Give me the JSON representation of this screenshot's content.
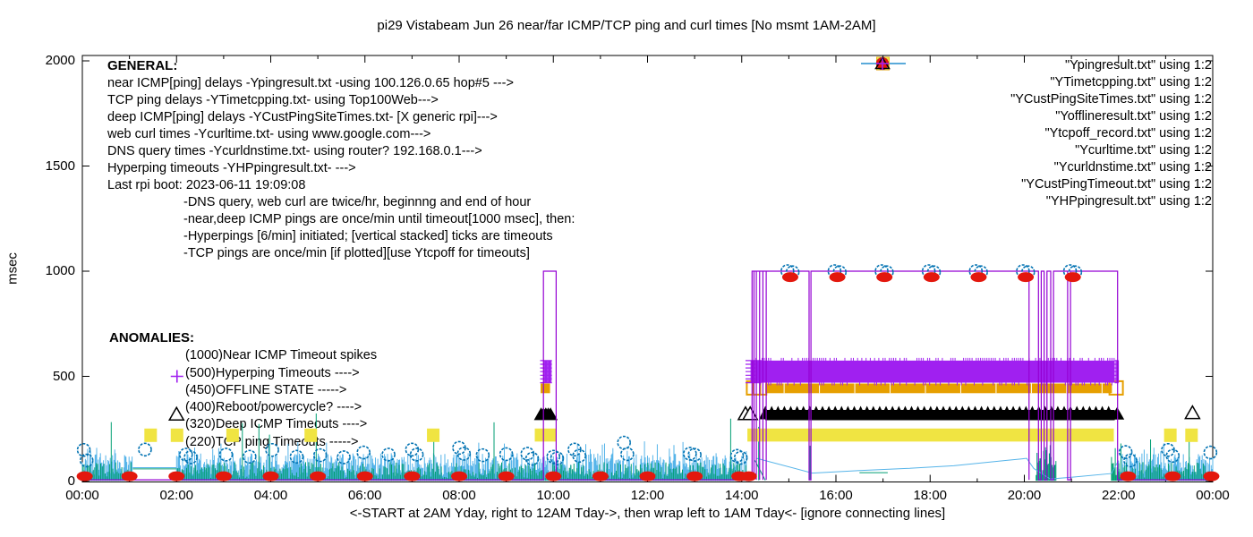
{
  "title": "pi29 Vistabeam Jun 26  near/far ICMP/TCP ping and curl times [No msmt 1AM-2AM]",
  "y_axis": {
    "label": "msec",
    "ticks": [
      0,
      500,
      1000,
      1500,
      2000
    ],
    "max": 2000
  },
  "x_axis": {
    "label": "<-START at 2AM Yday, right to 12AM Tday->, then wrap left to 1AM Tday<- [ignore connecting lines]",
    "ticks": [
      "00:00",
      "02:00",
      "04:00",
      "06:00",
      "08:00",
      "10:00",
      "12:00",
      "14:00",
      "16:00",
      "18:00",
      "20:00",
      "22:00",
      "00:00"
    ],
    "tick_hours": [
      0,
      2,
      4,
      6,
      8,
      10,
      12,
      14,
      16,
      18,
      20,
      22,
      24
    ]
  },
  "legend": [
    {
      "label": "\"Ypingresult.txt\" using 1:2",
      "marker": "line",
      "color": "#9400d3"
    },
    {
      "label": "\"YTimetcpping.txt\" using 1:2",
      "marker": "line",
      "color": "#009e73"
    },
    {
      "label": "\"YCustPingSiteTimes.txt\" using 1:2",
      "marker": "line",
      "color": "#56b4e9"
    },
    {
      "label": "\"Yofflineresult.txt\" using 1:2",
      "marker": "open-square",
      "color": "#e69f00"
    },
    {
      "label": "\"Ytcpoff_record.txt\" using 1:2",
      "marker": "filled-square",
      "color": "#f0e442"
    },
    {
      "label": "\"Ycurltime.txt\" using 1:2",
      "marker": "open-circle",
      "color": "#0072b2"
    },
    {
      "label": "\"Ycurldnstime.txt\" using 1:2",
      "marker": "filled-circle",
      "color": "#e3170d"
    },
    {
      "label": "\"YCustPingTimeout.txt\" using 1:2",
      "marker": "open-triangle",
      "color": "#000000"
    },
    {
      "label": "\"YHPpingresult.txt\" using 1:2",
      "marker": "plus",
      "color": "#a020f0"
    }
  ],
  "general": {
    "heading": "GENERAL:",
    "lines": [
      "near ICMP[ping] delays -Ypingresult.txt -using 100.126.0.65 hop#5 --->",
      "TCP ping delays -YTimetcpping.txt- using Top100Web--->",
      "deep ICMP[ping] delays -YCustPingSiteTimes.txt- [X generic rpi]--->",
      "web curl times -Ycurltime.txt- using www.google.com--->",
      "DNS query times -Ycurldnstime.txt- using router? 192.168.0.1--->",
      "Hyperping timeouts -YHPpingresult.txt- --->",
      "Last rpi boot: 2023-06-11 19:09:08"
    ],
    "notes": [
      "-DNS query, web curl are twice/hr, beginnng and end of hour",
      "-near,deep ICMP pings are once/min until timeout[1000 msec], then:",
      " -Hyperpings [6/min] initiated; [vertical stacked] ticks are timeouts",
      "-TCP pings are once/min [if plotted][use Ytcpoff for timeouts]"
    ]
  },
  "anomalies": {
    "heading": "ANOMALIES:",
    "lines": [
      "(1000)Near ICMP Timeout spikes",
      "(500)Hyperping Timeouts ---->",
      "(450)OFFLINE STATE ----->",
      "(400)Reboot/powercycle? ---->",
      "(320)Deep ICMP Timeouts ---->",
      "(220)TCP ping Timeouts ----->"
    ]
  },
  "colors": {
    "near_icmp": "#9400d3",
    "tcp_ping": "#009e73",
    "deep_icmp": "#56b4e9",
    "offline": "#e69f00",
    "tcpoff": "#f0e442",
    "curl": "#0072b2",
    "dns": "#e3170d",
    "cust_timeout": "#000000",
    "hyperping": "#a020f0"
  },
  "chart_data": {
    "type": "line",
    "title": "pi29 Vistabeam Jun 26  near/far ICMP/TCP ping and curl times [No msmt 1AM-2AM]",
    "xlabel": "<-START at 2AM Yday, right to 12AM Tday->, then wrap left to 1AM Tday<- [ignore connecting lines]",
    "ylabel": "msec",
    "xlim": [
      0,
      24
    ],
    "ylim": [
      0,
      2000
    ],
    "grid": false,
    "legend_position": "top-right",
    "no_msmt_gap": {
      "range": [
        1.07,
        2.0
      ],
      "flat_lines": [
        {
          "series": "tcp_ping",
          "msec": 60
        },
        {
          "series": "deep_icmp",
          "msec": 66
        }
      ]
    },
    "noise": {
      "segments": [
        [
          0.0,
          1.07
        ],
        [
          2.0,
          14.1
        ],
        [
          22.0,
          24.0
        ]
      ],
      "deep_icmp_band": {
        "min": 25,
        "max": 135,
        "spike_max": 195
      },
      "tcp_ping_band": {
        "min": 14,
        "max": 92,
        "spike_max": 330
      }
    },
    "teal_grass_patches": [
      [
        20.25,
        20.68,
        175
      ],
      [
        21.85,
        22.05,
        200
      ]
    ],
    "near_icmp_path": [
      [
        0,
        8
      ],
      [
        9.79,
        8
      ],
      [
        9.79,
        1000
      ],
      [
        10.06,
        1000
      ],
      [
        10.06,
        8
      ],
      [
        14.22,
        8
      ],
      [
        14.22,
        1000
      ],
      [
        15.43,
        1000
      ],
      [
        15.43,
        8
      ],
      [
        15.47,
        8
      ],
      [
        15.47,
        1000
      ],
      [
        20.3,
        1000
      ],
      [
        20.3,
        8
      ],
      [
        20.36,
        8
      ],
      [
        20.36,
        1000
      ],
      [
        20.42,
        1000
      ],
      [
        20.42,
        8
      ],
      [
        20.48,
        8
      ],
      [
        20.48,
        1000
      ],
      [
        20.56,
        1000
      ],
      [
        20.56,
        8
      ],
      [
        20.62,
        8
      ],
      [
        20.62,
        1000
      ],
      [
        20.92,
        1000
      ],
      [
        20.92,
        8
      ],
      [
        20.98,
        8
      ],
      [
        20.98,
        1000
      ],
      [
        21.98,
        1000
      ],
      [
        21.98,
        8
      ],
      [
        24,
        8
      ]
    ],
    "near_icmp_extra_verticals": [
      14.26,
      14.31,
      14.38,
      14.45,
      14.52,
      20.1
    ],
    "hyperping": {
      "band": {
        "x0": 14.3,
        "x1": 21.92,
        "msec_lo": 470,
        "msec_hi": 575
      },
      "clusters": [
        [
          9.72,
          9.97
        ],
        [
          14.08,
          14.42
        ],
        [
          21.92,
          22.0
        ]
      ],
      "points": [
        [
          2.01,
          500
        ]
      ]
    },
    "offline": {
      "band": {
        "x0": 14.5,
        "x1": 21.86,
        "msec_lo": 420,
        "msec_hi": 466
      },
      "cluster": [
        9.73,
        9.93
      ],
      "open_points": [
        [
          14.25,
          445
        ],
        [
          14.38,
          445
        ],
        [
          21.95,
          445
        ]
      ]
    },
    "tcpoff": {
      "band": {
        "x0": 14.12,
        "x1": 21.9,
        "msec_lo": 190,
        "msec_hi": 252
      },
      "cluster": [
        9.72,
        9.95
      ],
      "points": [
        [
          1.45,
          220
        ],
        [
          2.01,
          220
        ],
        [
          3.19,
          220
        ],
        [
          4.85,
          220
        ],
        [
          7.45,
          220
        ],
        [
          23.1,
          220
        ],
        [
          23.55,
          220
        ]
      ]
    },
    "cust_timeout": {
      "band": {
        "x0": 14.5,
        "x1": 21.92,
        "msec": 320
      },
      "filled_cluster": [
        9.74,
        9.98
      ],
      "filled_points": [
        [
          21.97,
          320
        ]
      ],
      "open_points": [
        [
          2.0,
          318
        ],
        [
          14.08,
          320
        ],
        [
          14.18,
          320
        ],
        [
          23.57,
          325
        ]
      ]
    },
    "curl_points": [
      [
        0.03,
        150
      ],
      [
        0.09,
        100
      ],
      [
        1.33,
        152
      ],
      [
        2.2,
        128
      ],
      [
        2.3,
        115
      ],
      [
        3.05,
        128
      ],
      [
        3.55,
        118
      ],
      [
        4.03,
        150
      ],
      [
        4.55,
        118
      ],
      [
        5.05,
        125
      ],
      [
        5.55,
        115
      ],
      [
        5.97,
        138
      ],
      [
        6.5,
        128
      ],
      [
        7.0,
        152
      ],
      [
        7.1,
        128
      ],
      [
        8.0,
        160
      ],
      [
        8.1,
        132
      ],
      [
        8.5,
        125
      ],
      [
        9.0,
        130
      ],
      [
        9.45,
        132
      ],
      [
        9.55,
        108
      ],
      [
        10.0,
        118
      ],
      [
        10.08,
        110
      ],
      [
        10.45,
        152
      ],
      [
        10.55,
        122
      ],
      [
        11.5,
        185
      ],
      [
        11.57,
        130
      ],
      [
        12.9,
        132
      ],
      [
        13.0,
        127
      ],
      [
        13.9,
        122
      ],
      [
        13.98,
        113
      ],
      [
        14.97,
        1000
      ],
      [
        15.08,
        995
      ],
      [
        15.97,
        1000
      ],
      [
        16.08,
        995
      ],
      [
        16.97,
        1000
      ],
      [
        17.08,
        995
      ],
      [
        17.97,
        1000
      ],
      [
        18.08,
        995
      ],
      [
        18.97,
        1000
      ],
      [
        19.08,
        995
      ],
      [
        19.97,
        1000
      ],
      [
        20.08,
        995
      ],
      [
        20.97,
        1000
      ],
      [
        21.08,
        995
      ],
      [
        22.15,
        140
      ],
      [
        22.25,
        100
      ],
      [
        23.05,
        150
      ],
      [
        23.15,
        122
      ],
      [
        23.95,
        138
      ]
    ],
    "dns_points_low": {
      "hours": [
        0.05,
        1,
        2,
        3,
        4,
        5,
        6,
        7,
        8,
        9,
        10,
        11,
        12,
        13,
        13.95,
        14.15,
        22.2,
        23.15,
        23.97
      ],
      "msec": 25
    },
    "dns_points_high": {
      "hours": [
        15.03,
        16.03,
        17.03,
        18.03,
        19.03,
        20.03,
        21.03
      ],
      "msec": 972
    },
    "deep_icmp_anomaly_line": [
      [
        14.32,
        110
      ],
      [
        15.5,
        40
      ],
      [
        16.5,
        52
      ],
      [
        17.5,
        62
      ],
      [
        18.5,
        75
      ],
      [
        19.6,
        100
      ],
      [
        20.05,
        110
      ],
      [
        20.2,
        62
      ],
      [
        20.55,
        12
      ],
      [
        21.0,
        20
      ],
      [
        21.85,
        38
      ],
      [
        22.0,
        100
      ]
    ],
    "tcp_ping_anomaly_segments": [
      [
        [
          14.28,
          100
        ],
        [
          14.5,
          6
        ]
      ],
      [
        [
          16.5,
          42
        ],
        [
          17.1,
          42
        ]
      ],
      [
        [
          14.36,
          6
        ],
        [
          14.36,
          260
        ]
      ],
      [
        [
          15.45,
          6
        ],
        [
          15.45,
          170
        ]
      ],
      [
        [
          22.68,
          6
        ],
        [
          22.68,
          200
        ]
      ],
      [
        [
          23.5,
          6
        ],
        [
          23.5,
          205
        ]
      ]
    ]
  }
}
